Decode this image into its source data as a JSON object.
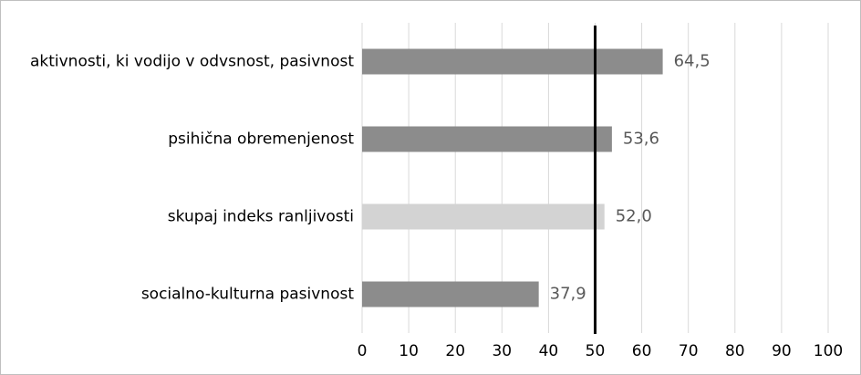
{
  "chart_data": {
    "type": "bar",
    "orientation": "horizontal",
    "categories": [
      "aktivnosti, ki vodijo v odvsnost, pasivnost",
      "psihična obremenjenost",
      "skupaj indeks ranljivosti",
      "socialno-kulturna pasivnost"
    ],
    "values": [
      64.5,
      53.6,
      52.0,
      37.9
    ],
    "value_labels": [
      "64,5",
      "53,6",
      "52,0",
      "37,9"
    ],
    "colors": [
      "#8c8c8c",
      "#8c8c8c",
      "#d3d3d3",
      "#8c8c8c"
    ],
    "xlim": [
      0,
      100
    ],
    "xticks": [
      0,
      10,
      20,
      30,
      40,
      50,
      60,
      70,
      80,
      90,
      100
    ],
    "grid": true,
    "reference_line": 50
  }
}
